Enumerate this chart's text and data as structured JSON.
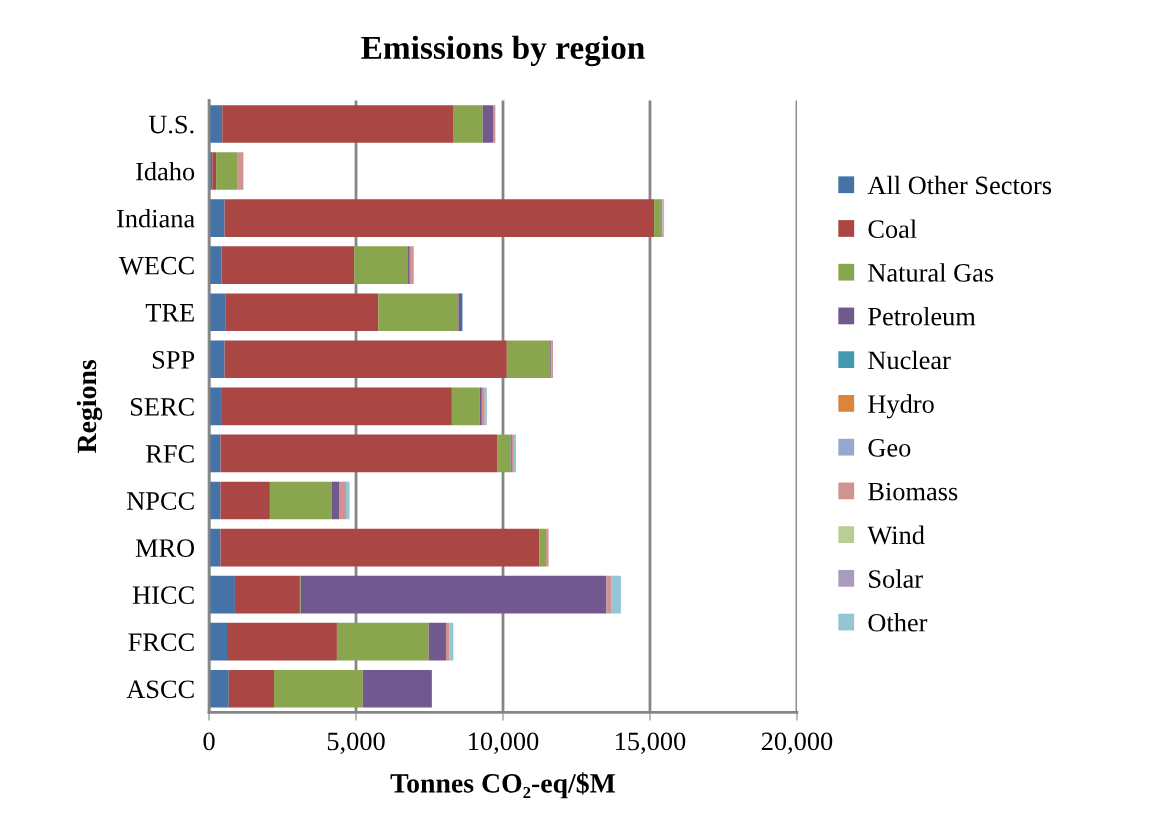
{
  "chart_data": {
    "type": "bar",
    "orientation": "horizontal",
    "stacked": true,
    "title": "Emissions by region",
    "xlabel": "Tonnes CO₂-eq/$M",
    "ylabel": "Regions",
    "categories": [
      "U.S.",
      "Idaho",
      "Indiana",
      "WECC",
      "TRE",
      "SPP",
      "SERC",
      "RFC",
      "NPCC",
      "MRO",
      "HICC",
      "FRCC",
      "ASCC"
    ],
    "series": [
      {
        "name": "All Other Sectors",
        "color": "#4572a7",
        "values": [
          450,
          110,
          530,
          420,
          570,
          530,
          410,
          390,
          390,
          390,
          880,
          610,
          670
        ]
      },
      {
        "name": "Coal",
        "color": "#aa4643",
        "values": [
          7850,
          130,
          14610,
          4520,
          5190,
          9600,
          7850,
          9410,
          1680,
          10840,
          2210,
          3740,
          1540
        ]
      },
      {
        "name": "Natural Gas",
        "color": "#89a54e",
        "values": [
          1010,
          710,
          230,
          1830,
          2720,
          1480,
          950,
          460,
          2110,
          210,
          30,
          3120,
          3020
        ]
      },
      {
        "name": "Petroleum",
        "color": "#71588f",
        "values": [
          350,
          0,
          30,
          60,
          130,
          30,
          70,
          40,
          240,
          20,
          10400,
          590,
          2350
        ]
      },
      {
        "name": "Nuclear",
        "color": "#4198af",
        "values": [
          0,
          0,
          0,
          0,
          0,
          0,
          0,
          0,
          0,
          0,
          0,
          0,
          0
        ]
      },
      {
        "name": "Hydro",
        "color": "#db843d",
        "values": [
          0,
          0,
          0,
          0,
          0,
          0,
          0,
          0,
          0,
          0,
          0,
          0,
          0
        ]
      },
      {
        "name": "Geo",
        "color": "#93a9cf",
        "values": [
          0,
          0,
          20,
          0,
          0,
          0,
          0,
          0,
          0,
          0,
          0,
          0,
          0
        ]
      },
      {
        "name": "Biomass",
        "color": "#d19392",
        "values": [
          80,
          220,
          20,
          110,
          0,
          60,
          100,
          70,
          240,
          90,
          160,
          120,
          0
        ]
      },
      {
        "name": "Wind",
        "color": "#b9cd96",
        "values": [
          0,
          0,
          0,
          0,
          0,
          0,
          0,
          0,
          0,
          0,
          0,
          0,
          0
        ]
      },
      {
        "name": "Solar",
        "color": "#a99bbd",
        "values": [
          0,
          0,
          0,
          0,
          0,
          0,
          0,
          0,
          0,
          0,
          0,
          0,
          0
        ]
      },
      {
        "name": "Other",
        "color": "#92c5d6",
        "values": [
          0,
          0,
          40,
          30,
          30,
          0,
          70,
          70,
          120,
          0,
          330,
          130,
          0
        ]
      }
    ],
    "xlim": [
      0,
      20000
    ],
    "xticks": [
      {
        "value": 0,
        "label": "0"
      },
      {
        "value": 5000,
        "label": "5,000"
      },
      {
        "value": 10000,
        "label": "10,000"
      },
      {
        "value": 15000,
        "label": "15,000"
      },
      {
        "value": 20000,
        "label": "20,000"
      }
    ],
    "grid": "x",
    "legend": "right"
  }
}
